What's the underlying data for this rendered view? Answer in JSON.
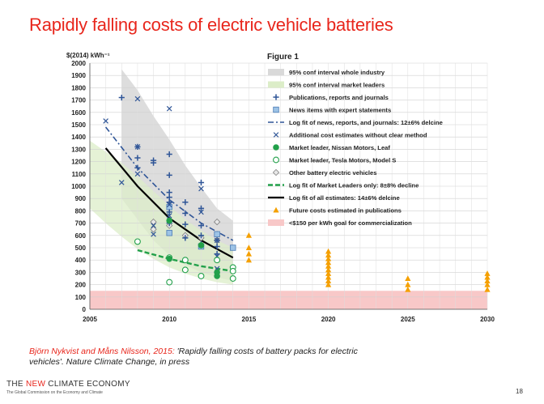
{
  "slide": {
    "title": "Rapidly falling costs of electric vehicle batteries",
    "citation_authors": "Björn Nykvist and Måns Nilsson, 2015:",
    "citation_rest": " 'Rapidly falling costs of battery packs for electric vehicles'. Nature Climate Change, in press",
    "logo_pre": "THE ",
    "logo_red": "NEW",
    "logo_post": " CLIMATE ECONOMY",
    "logo_sub": "The Global Commission on the Economy and Climate",
    "page_number": "18"
  },
  "chart_data": {
    "type": "scatter",
    "title": "Figure 1",
    "ylabel": "$(2014) kWh⁻¹",
    "xlabel": "",
    "xlim": [
      2005,
      2030
    ],
    "ylim": [
      0,
      2000
    ],
    "x_ticks": [
      2005,
      2010,
      2015,
      2020,
      2025,
      2030
    ],
    "y_ticks": [
      0,
      100,
      200,
      300,
      400,
      500,
      600,
      700,
      800,
      900,
      1000,
      1100,
      1200,
      1300,
      1400,
      1500,
      1600,
      1700,
      1800,
      1900,
      2000
    ],
    "grid": true,
    "legend_position": "top-right",
    "colors": {
      "whole_industry_band": "#d9d9d9",
      "market_leaders_band": "#dcedc8",
      "blue": "#2f5597",
      "green": "#22a04a",
      "orange": "#f5a000",
      "goal_band": "#f8c8c8"
    },
    "legend": [
      {
        "key": "band_industry",
        "label": "95% conf interval whole industry"
      },
      {
        "key": "band_leaders",
        "label": "95% conf interval market leaders"
      },
      {
        "key": "pubs",
        "label": "Publications, reports and journals"
      },
      {
        "key": "news",
        "label": "News items with expert statements"
      },
      {
        "key": "fit_news",
        "label": "Log fit of news, reports, and journals: 12±6% delcine"
      },
      {
        "key": "additional",
        "label": "Additional cost estimates without clear method"
      },
      {
        "key": "nissan",
        "label": "Market leader, Nissan Motors, Leaf"
      },
      {
        "key": "tesla",
        "label": "Market leader, Tesla Motors, Model S"
      },
      {
        "key": "other_bev",
        "label": "Other battery electric vehicles"
      },
      {
        "key": "fit_leaders",
        "label": "Log fit of Market Leaders only: 8±8% decline"
      },
      {
        "key": "fit_all",
        "label": "Log fit of all estimates: 14±6% delcine"
      },
      {
        "key": "future",
        "label": "Future costs estimated in publications"
      },
      {
        "key": "goal",
        "label": "<$150 per kWh goal for commercialization"
      }
    ],
    "goal_band": [
      0,
      150
    ],
    "band_industry": {
      "x": [
        2007,
        2008,
        2009,
        2010,
        2011,
        2012,
        2013,
        2014
      ],
      "upper": [
        1950,
        1780,
        1570,
        1380,
        1170,
        990,
        820,
        720
      ],
      "lower": [
        900,
        730,
        560,
        440,
        360,
        300,
        260,
        230
      ]
    },
    "band_leaders": {
      "x": [
        2005,
        2006,
        2007,
        2008,
        2009,
        2010,
        2011,
        2012,
        2013,
        2014
      ],
      "upper": [
        1370,
        1280,
        1190,
        1080,
        960,
        840,
        730,
        640,
        560,
        500
      ],
      "lower": [
        820,
        700,
        590,
        490,
        410,
        340,
        290,
        250,
        220,
        200
      ]
    },
    "series": [
      {
        "name": "Publications, reports and journals",
        "marker": "plus",
        "points": [
          [
            2007,
            1720
          ],
          [
            2008,
            1320
          ],
          [
            2008,
            1230
          ],
          [
            2008,
            1150
          ],
          [
            2009,
            1210
          ],
          [
            2009,
            1190
          ],
          [
            2010,
            1260
          ],
          [
            2010,
            1090
          ],
          [
            2010,
            950
          ],
          [
            2010,
            910
          ],
          [
            2010,
            870
          ],
          [
            2010,
            790
          ],
          [
            2010,
            700
          ],
          [
            2011,
            870
          ],
          [
            2011,
            780
          ],
          [
            2011,
            690
          ],
          [
            2011,
            580
          ],
          [
            2012,
            1030
          ],
          [
            2012,
            820
          ],
          [
            2012,
            680
          ],
          [
            2012,
            600
          ],
          [
            2012,
            530
          ],
          [
            2013,
            560
          ],
          [
            2013,
            510
          ],
          [
            2013,
            450
          ]
        ]
      },
      {
        "name": "News items with expert statements",
        "marker": "square",
        "points": [
          [
            2010,
            830
          ],
          [
            2010,
            620
          ],
          [
            2012,
            510
          ],
          [
            2013,
            610
          ],
          [
            2014,
            500
          ]
        ]
      },
      {
        "name": "Additional cost estimates without clear method",
        "marker": "x",
        "points": [
          [
            2006,
            1530
          ],
          [
            2007,
            1030
          ],
          [
            2008,
            1710
          ],
          [
            2008,
            1320
          ],
          [
            2008,
            1100
          ],
          [
            2009,
            680
          ],
          [
            2009,
            610
          ],
          [
            2010,
            1630
          ],
          [
            2010,
            850
          ],
          [
            2010,
            760
          ],
          [
            2012,
            980
          ],
          [
            2012,
            790
          ],
          [
            2013,
            560
          ],
          [
            2013,
            430
          ],
          [
            2013,
            330
          ]
        ]
      },
      {
        "name": "Market leader, Nissan Motors, Leaf",
        "marker": "dot",
        "points": [
          [
            2010,
            720
          ],
          [
            2010,
            410
          ],
          [
            2012,
            520
          ],
          [
            2013,
            300
          ],
          [
            2013,
            270
          ]
        ]
      },
      {
        "name": "Market leader, Tesla Motors, Model S",
        "marker": "circle",
        "points": [
          [
            2008,
            550
          ],
          [
            2010,
            420
          ],
          [
            2010,
            220
          ],
          [
            2011,
            400
          ],
          [
            2011,
            320
          ],
          [
            2012,
            270
          ],
          [
            2013,
            400
          ],
          [
            2014,
            340
          ],
          [
            2014,
            310
          ],
          [
            2014,
            250
          ]
        ]
      },
      {
        "name": "Other battery electric vehicles",
        "marker": "diamond",
        "points": [
          [
            2009,
            710
          ],
          [
            2009,
            650
          ],
          [
            2010,
            680
          ],
          [
            2011,
            600
          ],
          [
            2012,
            580
          ],
          [
            2013,
            710
          ],
          [
            2013,
            560
          ]
        ]
      },
      {
        "name": "Future costs estimated in publications",
        "marker": "triangle",
        "points": [
          [
            2015,
            600
          ],
          [
            2015,
            500
          ],
          [
            2015,
            450
          ],
          [
            2015,
            400
          ],
          [
            2020,
            470
          ],
          [
            2020,
            440
          ],
          [
            2020,
            410
          ],
          [
            2020,
            380
          ],
          [
            2020,
            350
          ],
          [
            2020,
            320
          ],
          [
            2020,
            290
          ],
          [
            2020,
            260
          ],
          [
            2020,
            230
          ],
          [
            2020,
            200
          ],
          [
            2025,
            250
          ],
          [
            2025,
            200
          ],
          [
            2025,
            160
          ],
          [
            2030,
            290
          ],
          [
            2030,
            260
          ],
          [
            2030,
            230
          ],
          [
            2030,
            200
          ],
          [
            2030,
            160
          ]
        ]
      }
    ],
    "fits": {
      "fit_news": {
        "x": [
          2006,
          2008,
          2010,
          2012,
          2014
        ],
        "y": [
          1480,
          1150,
          890,
          700,
          560
        ]
      },
      "fit_all": {
        "x": [
          2006,
          2008,
          2010,
          2012,
          2014
        ],
        "y": [
          1310,
          1000,
          740,
          560,
          420
        ]
      },
      "fit_leaders": {
        "x": [
          2008,
          2010,
          2012,
          2014
        ],
        "y": [
          480,
          410,
          350,
          310
        ]
      }
    }
  }
}
